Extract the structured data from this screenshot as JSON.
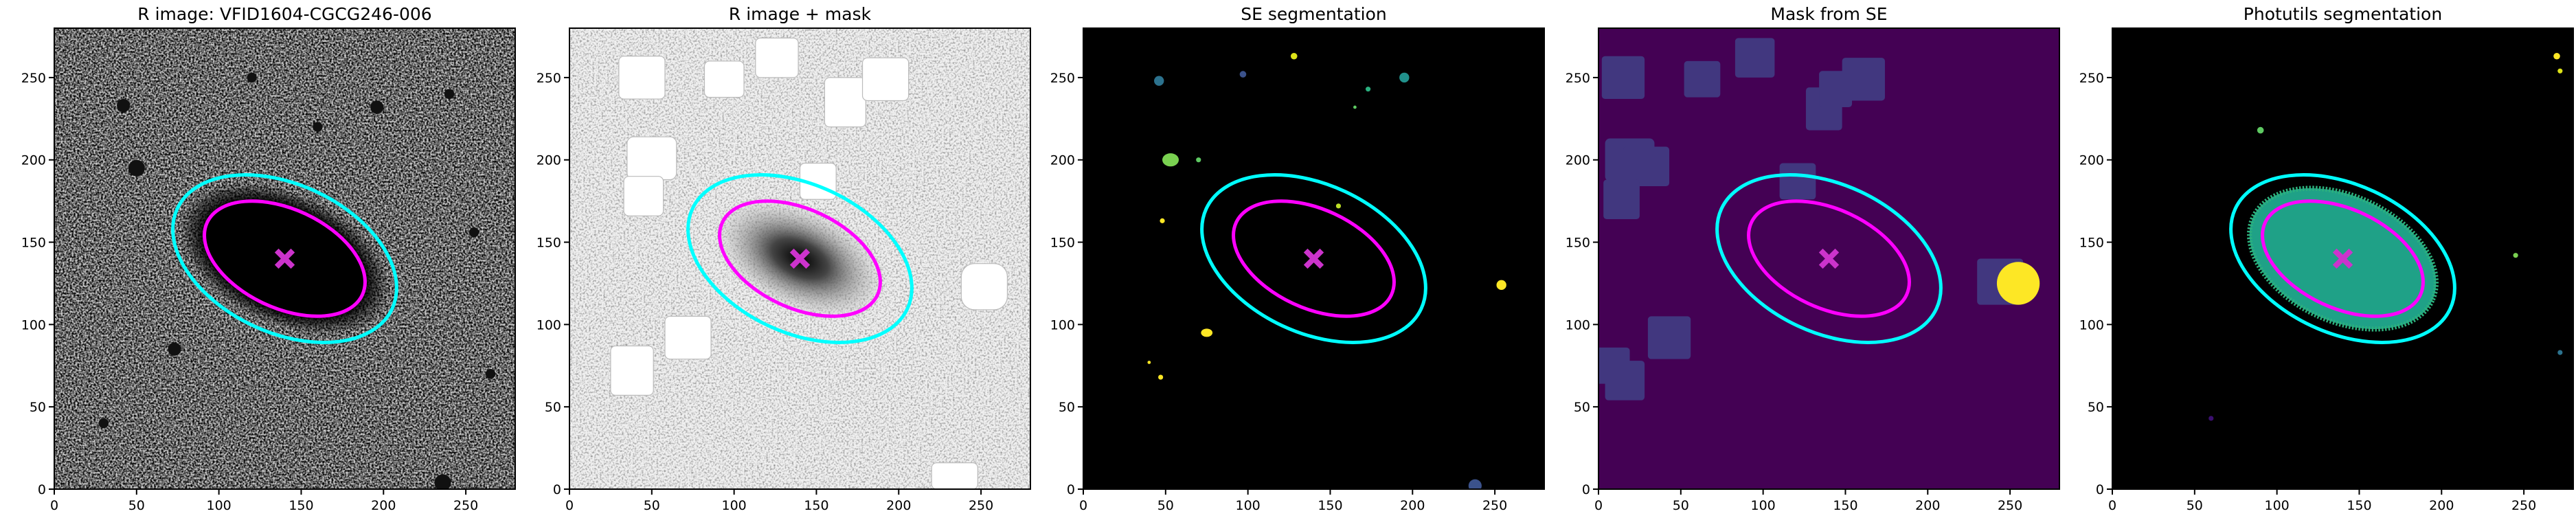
{
  "chart_data": [
    {
      "type": "image",
      "title": "R image: VFID1604-CGCG246-006",
      "xlim": [
        0,
        280
      ],
      "ylim": [
        0,
        280
      ],
      "xticks": [
        0,
        50,
        100,
        150,
        200,
        250
      ],
      "yticks": [
        0,
        50,
        100,
        150,
        200,
        250
      ],
      "ellipses": [
        {
          "color": "#00ffff",
          "x": 140,
          "y": 140,
          "a": 72,
          "b": 45,
          "angle": -25
        },
        {
          "color": "#ff00ff",
          "x": 140,
          "y": 140,
          "a": 52,
          "b": 30,
          "angle": -25
        }
      ],
      "points": [
        {
          "color": "#cc33cc",
          "x": 140,
          "y": 140
        }
      ]
    },
    {
      "type": "image",
      "title": "R image + mask",
      "xlim": [
        0,
        280
      ],
      "ylim": [
        0,
        280
      ],
      "xticks": [
        0,
        50,
        100,
        150,
        200,
        250
      ],
      "yticks": [
        0,
        50,
        100,
        150,
        200,
        250
      ],
      "ellipses": [
        {
          "color": "#00ffff",
          "x": 140,
          "y": 140,
          "a": 72,
          "b": 45,
          "angle": -25
        },
        {
          "color": "#ff00ff",
          "x": 140,
          "y": 140,
          "a": 52,
          "b": 30,
          "angle": -25
        }
      ],
      "points": [
        {
          "color": "#cc33cc",
          "x": 140,
          "y": 140
        }
      ]
    },
    {
      "type": "image",
      "title": "SE segmentation",
      "xlim": [
        0,
        280
      ],
      "ylim": [
        0,
        280
      ],
      "xticks": [
        0,
        50,
        100,
        150,
        200,
        250
      ],
      "yticks": [
        0,
        50,
        100,
        150,
        200,
        250
      ],
      "ellipses": [
        {
          "color": "#00ffff",
          "x": 140,
          "y": 140,
          "a": 72,
          "b": 45,
          "angle": -25
        },
        {
          "color": "#ff00ff",
          "x": 140,
          "y": 140,
          "a": 52,
          "b": 30,
          "angle": -25
        }
      ],
      "points": [
        {
          "color": "#cc33cc",
          "x": 140,
          "y": 140
        }
      ]
    },
    {
      "type": "image",
      "title": "Mask from SE",
      "xlim": [
        0,
        280
      ],
      "ylim": [
        0,
        280
      ],
      "xticks": [
        0,
        50,
        100,
        150,
        200,
        250
      ],
      "yticks": [
        0,
        50,
        100,
        150,
        200,
        250
      ],
      "ellipses": [
        {
          "color": "#00ffff",
          "x": 140,
          "y": 140,
          "a": 72,
          "b": 45,
          "angle": -25
        },
        {
          "color": "#ff00ff",
          "x": 140,
          "y": 140,
          "a": 52,
          "b": 30,
          "angle": -25
        }
      ],
      "points": [
        {
          "color": "#cc33cc",
          "x": 140,
          "y": 140
        }
      ]
    },
    {
      "type": "image",
      "title": "Photutils segmentation",
      "xlim": [
        0,
        280
      ],
      "ylim": [
        0,
        280
      ],
      "xticks": [
        0,
        50,
        100,
        150,
        200,
        250
      ],
      "yticks": [
        0,
        50,
        100,
        150,
        200,
        250
      ],
      "ellipses": [
        {
          "color": "#00ffff",
          "x": 140,
          "y": 140,
          "a": 72,
          "b": 45,
          "angle": -25
        },
        {
          "color": "#ff00ff",
          "x": 140,
          "y": 140,
          "a": 52,
          "b": 30,
          "angle": -25
        }
      ],
      "points": [
        {
          "color": "#cc33cc",
          "x": 140,
          "y": 140
        }
      ]
    }
  ]
}
